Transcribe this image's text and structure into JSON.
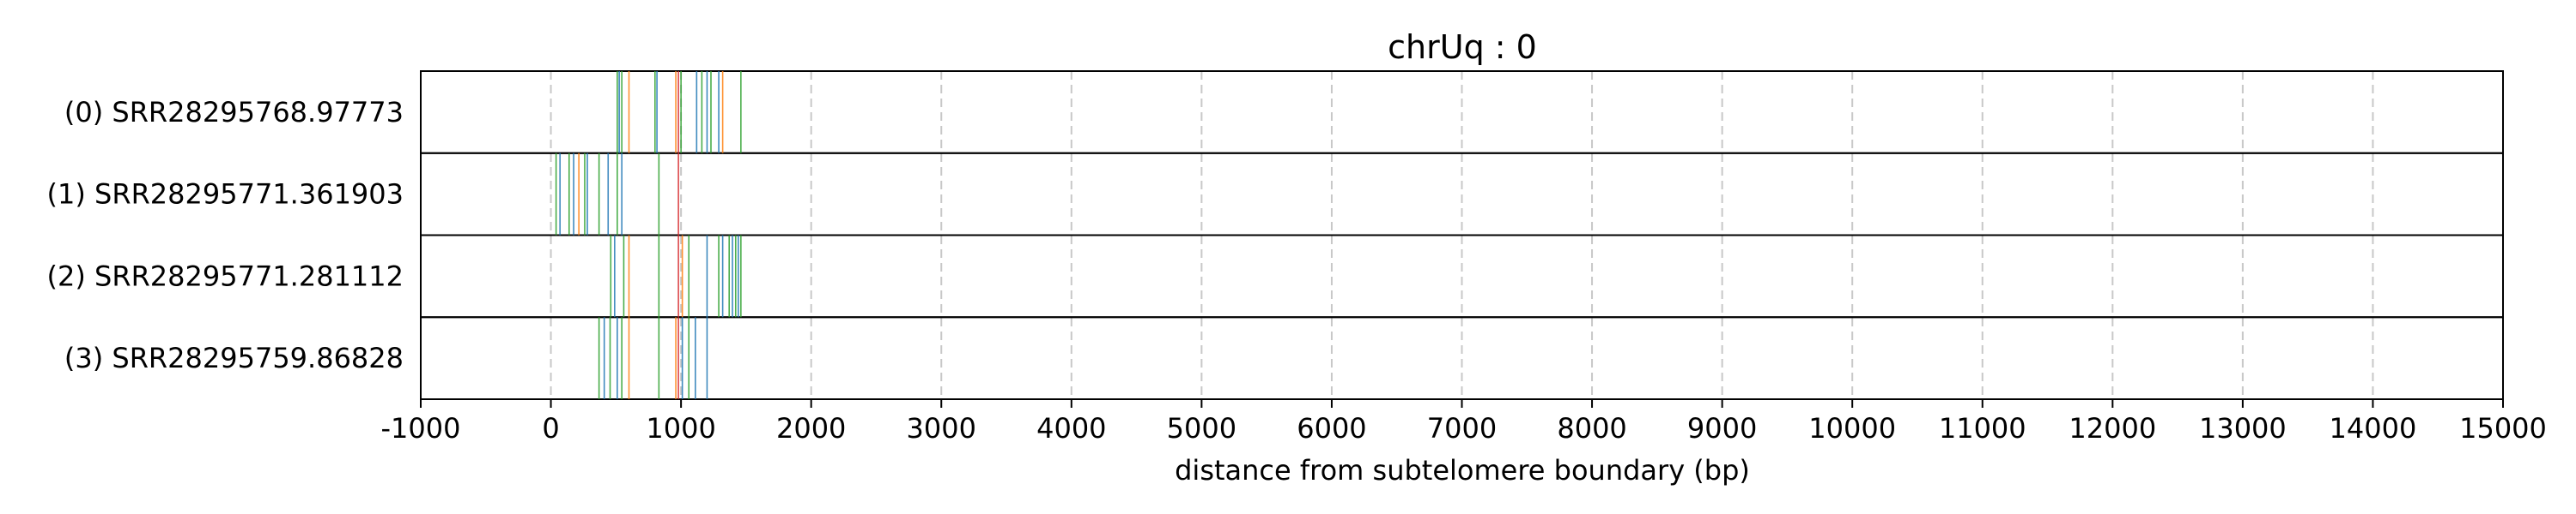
{
  "chart_data": {
    "type": "read-map",
    "title": "chrUq : 0",
    "xlabel": "distance from subtelomere boundary (bp)",
    "xlim": [
      -1000,
      15000
    ],
    "xticks": [
      -1000,
      0,
      1000,
      2000,
      3000,
      4000,
      5000,
      6000,
      7000,
      8000,
      9000,
      10000,
      11000,
      12000,
      13000,
      14000,
      15000
    ],
    "grid": "vertical dashed",
    "colors": {
      "green": "#2ca02c",
      "blue": "#1f77b4",
      "orange": "#ff7f0e",
      "red": "#d62728",
      "grid": "#c8c8c8"
    },
    "reads": [
      {
        "label": "(0) SRR28295768.97773",
        "marks": [
          {
            "x": 510,
            "color": "green"
          },
          {
            "x": 525,
            "color": "blue"
          },
          {
            "x": 545,
            "color": "green"
          },
          {
            "x": 600,
            "color": "orange"
          },
          {
            "x": 800,
            "color": "green"
          },
          {
            "x": 815,
            "color": "blue"
          },
          {
            "x": 960,
            "color": "orange"
          },
          {
            "x": 980,
            "color": "red"
          },
          {
            "x": 1000,
            "color": "green"
          },
          {
            "x": 1120,
            "color": "blue"
          },
          {
            "x": 1160,
            "color": "green"
          },
          {
            "x": 1200,
            "color": "blue"
          },
          {
            "x": 1230,
            "color": "green"
          },
          {
            "x": 1290,
            "color": "blue"
          },
          {
            "x": 1320,
            "color": "orange"
          },
          {
            "x": 1460,
            "color": "green"
          }
        ]
      },
      {
        "label": "(1) SRR28295771.361903",
        "marks": [
          {
            "x": 40,
            "color": "green"
          },
          {
            "x": 70,
            "color": "blue"
          },
          {
            "x": 140,
            "color": "green"
          },
          {
            "x": 175,
            "color": "blue"
          },
          {
            "x": 215,
            "color": "orange"
          },
          {
            "x": 260,
            "color": "green"
          },
          {
            "x": 280,
            "color": "blue"
          },
          {
            "x": 370,
            "color": "green"
          },
          {
            "x": 440,
            "color": "blue"
          },
          {
            "x": 510,
            "color": "green"
          },
          {
            "x": 545,
            "color": "blue"
          },
          {
            "x": 830,
            "color": "green"
          },
          {
            "x": 980,
            "color": "red"
          }
        ]
      },
      {
        "label": "(2) SRR28295771.281112",
        "marks": [
          {
            "x": 460,
            "color": "green"
          },
          {
            "x": 490,
            "color": "blue"
          },
          {
            "x": 560,
            "color": "green"
          },
          {
            "x": 600,
            "color": "orange"
          },
          {
            "x": 830,
            "color": "green"
          },
          {
            "x": 980,
            "color": "red"
          },
          {
            "x": 1010,
            "color": "orange"
          },
          {
            "x": 1060,
            "color": "green"
          },
          {
            "x": 1200,
            "color": "blue"
          },
          {
            "x": 1290,
            "color": "green"
          },
          {
            "x": 1320,
            "color": "blue"
          },
          {
            "x": 1370,
            "color": "green"
          },
          {
            "x": 1395,
            "color": "blue"
          },
          {
            "x": 1420,
            "color": "green"
          },
          {
            "x": 1440,
            "color": "blue"
          },
          {
            "x": 1460,
            "color": "green"
          }
        ]
      },
      {
        "label": "(3) SRR28295759.86828",
        "marks": [
          {
            "x": 370,
            "color": "green"
          },
          {
            "x": 410,
            "color": "blue"
          },
          {
            "x": 455,
            "color": "green"
          },
          {
            "x": 510,
            "color": "blue"
          },
          {
            "x": 545,
            "color": "green"
          },
          {
            "x": 600,
            "color": "orange"
          },
          {
            "x": 830,
            "color": "green"
          },
          {
            "x": 960,
            "color": "orange"
          },
          {
            "x": 980,
            "color": "red"
          },
          {
            "x": 1010,
            "color": "blue"
          },
          {
            "x": 1060,
            "color": "green"
          },
          {
            "x": 1110,
            "color": "blue"
          },
          {
            "x": 1200,
            "color": "blue"
          }
        ]
      }
    ]
  }
}
